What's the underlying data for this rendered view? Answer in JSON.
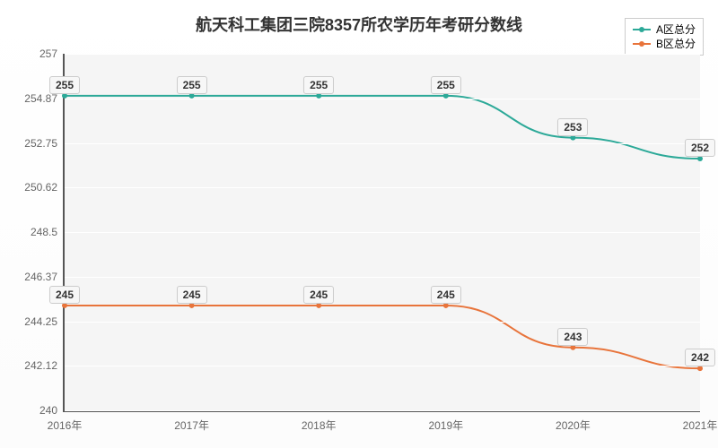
{
  "chart": {
    "type": "line",
    "title": "航天科工集团三院8357所农学历年考研分数线",
    "title_fontsize": 18,
    "background_color": "#ffffff",
    "plot_background_color": "#f5f5f5",
    "grid_color": "#ffffff",
    "axis_color": "#555555",
    "tick_label_color": "#666666",
    "tick_fontsize": 12,
    "data_label_fontsize": 12,
    "data_label_bg": "#f7f7f7",
    "data_label_border": "#cccccc",
    "legend": {
      "position": "top-right",
      "border_color": "#cccccc",
      "bg_color": "#ffffff",
      "items": [
        {
          "label": "A区总分",
          "color": "#2ca998"
        },
        {
          "label": "B区总分",
          "color": "#e8743b"
        }
      ]
    },
    "x": {
      "categories": [
        "2016年",
        "2017年",
        "2018年",
        "2019年",
        "2020年",
        "2021年"
      ]
    },
    "y": {
      "min": 240,
      "max": 257,
      "ticks": [
        240,
        242.12,
        244.25,
        246.37,
        248.5,
        250.62,
        252.75,
        254.87,
        257
      ]
    },
    "series": [
      {
        "name": "A区总分",
        "color": "#2ca998",
        "line_width": 2,
        "marker_radius": 3,
        "values": [
          255,
          255,
          255,
          255,
          253,
          252
        ]
      },
      {
        "name": "B区总分",
        "color": "#e8743b",
        "line_width": 2,
        "marker_radius": 3,
        "values": [
          245,
          245,
          245,
          245,
          243,
          242
        ]
      }
    ]
  }
}
